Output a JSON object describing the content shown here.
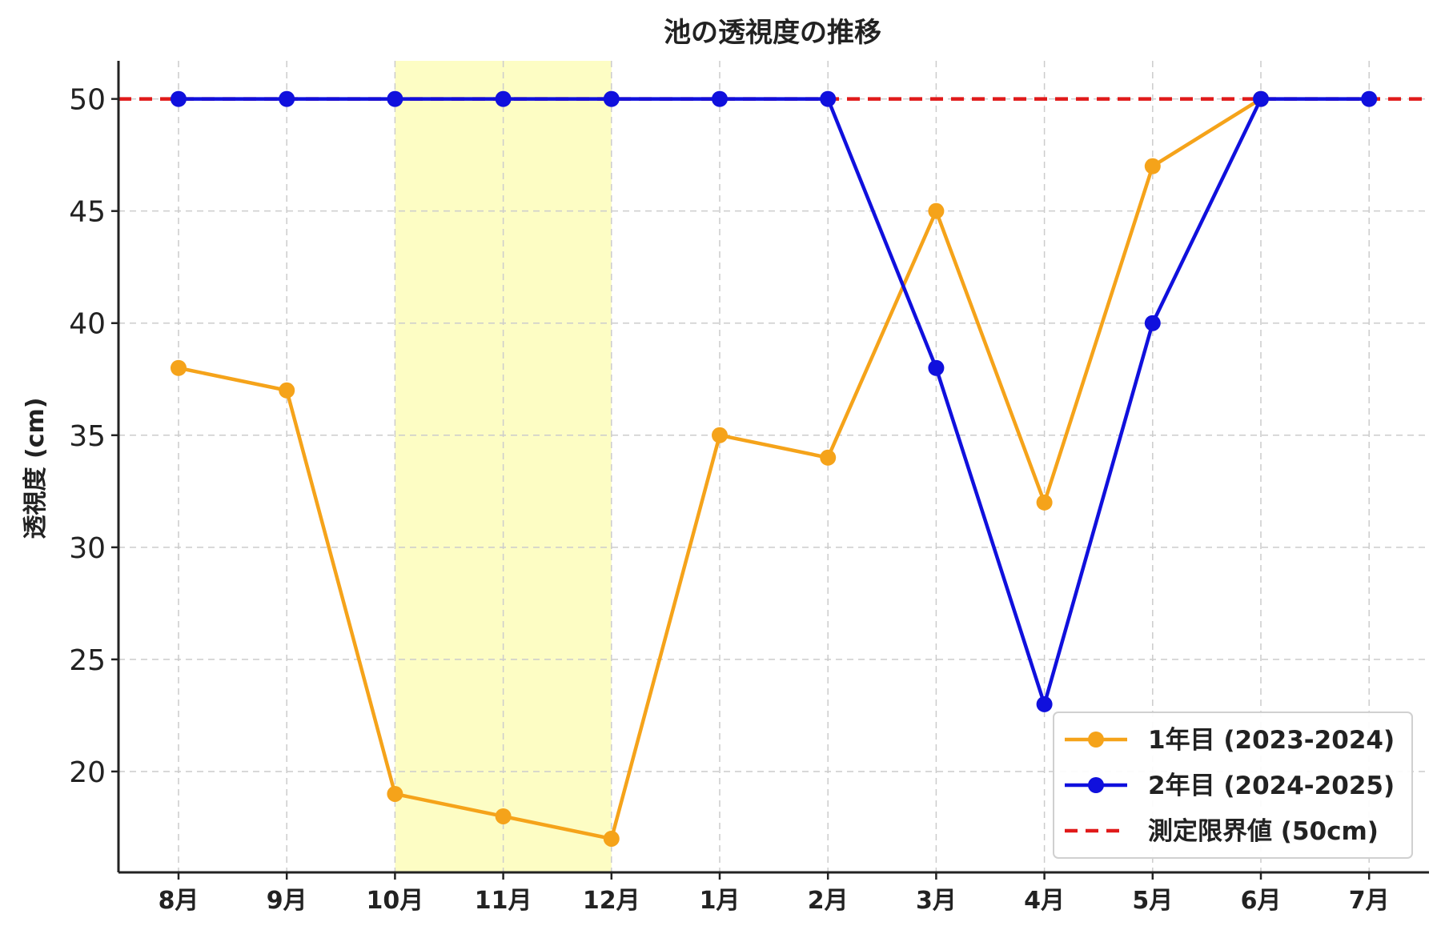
{
  "chart_data": {
    "type": "line",
    "title": "池の透視度の推移",
    "xlabel": "",
    "ylabel": "透視度 (cm)",
    "categories": [
      "8月",
      "9月",
      "10月",
      "11月",
      "12月",
      "1月",
      "2月",
      "3月",
      "4月",
      "5月",
      "6月",
      "7月"
    ],
    "ylim": [
      15.5,
      51.7
    ],
    "yticks": [
      20,
      25,
      30,
      35,
      40,
      45,
      50
    ],
    "grid": true,
    "legend_position": "bottom-right",
    "highlight_range": {
      "from": "10月",
      "to": "12月",
      "color": "#fdfdc4"
    },
    "series": [
      {
        "name": "1年目 (2023-2024)",
        "color": "#f5a31a",
        "values": [
          38,
          37,
          19,
          18,
          17,
          35,
          34,
          45,
          32,
          47,
          50,
          null
        ]
      },
      {
        "name": "2年目 (2024-2025)",
        "color": "#1010dd",
        "values": [
          50,
          50,
          50,
          50,
          50,
          50,
          50,
          38,
          23,
          40,
          50,
          50
        ]
      }
    ],
    "reference_line": {
      "name": "測定限界値 (50cm)",
      "value": 50,
      "color": "#e01a1a",
      "style": "dashed"
    }
  }
}
